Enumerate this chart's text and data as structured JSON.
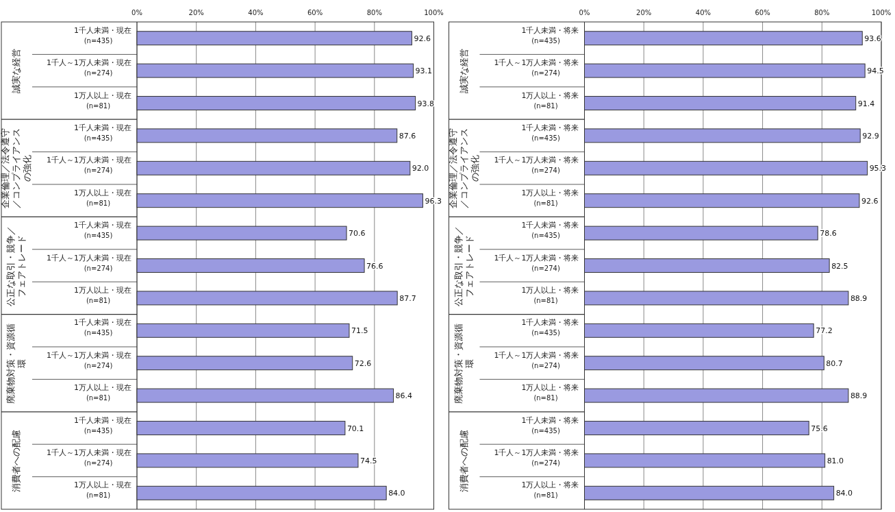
{
  "chart_data": [
    {
      "type": "bar",
      "orientation": "horizontal",
      "color": "#9a9ae0",
      "xlim": [
        0,
        100
      ],
      "grid": "x",
      "xticks": [
        {
          "value": 0,
          "label": "0%"
        },
        {
          "value": 20,
          "label": "20%"
        },
        {
          "value": 40,
          "label": "40%"
        },
        {
          "value": 60,
          "label": "60%"
        },
        {
          "value": 80,
          "label": "80%"
        },
        {
          "value": 100,
          "label": "100%"
        }
      ],
      "categories": [
        "1千人未満・現在\n(n=435)",
        "1千人～1万人未満・現在\n(n=274)",
        "1万人以上・現在\n(n=81)",
        "1千人未満・現在\n(n=435)",
        "1千人～1万人未満・現在\n(n=274)",
        "1万人以上・現在\n(n=81)",
        "1千人未満・現在\n(n=435)",
        "1千人～1万人未満・現在\n(n=274)",
        "1万人以上・現在\n(n=81)",
        "1千人未満・現在\n(n=435)",
        "1千人～1万人未満・現在\n(n=274)",
        "1万人以上・現在\n(n=81)",
        "1千人未満・現在\n(n=435)",
        "1千人～1万人未満・現在\n(n=274)",
        "1万人以上・現在\n(n=81)"
      ],
      "values": [
        92.6,
        93.1,
        93.8,
        87.6,
        92.0,
        96.3,
        70.6,
        76.6,
        87.7,
        71.5,
        72.6,
        86.4,
        70.1,
        74.5,
        84.0
      ],
      "value_labels": [
        "92.6",
        "93.1",
        "93.8",
        "87.6",
        "92.0",
        "96.3",
        "70.6",
        "76.6",
        "87.7",
        "71.5",
        "72.6",
        "86.4",
        "70.1",
        "74.5",
        "84.0"
      ],
      "annotations": [
        "誠実な経営",
        "企業倫理／法令遵守／コンプライアンスの強化",
        "公正な取引・競争／フェアトレード",
        "廃棄物対策・資源循環",
        "消費者への配慮"
      ]
    },
    {
      "type": "bar",
      "orientation": "horizontal",
      "color": "#9a9ae0",
      "xlim": [
        0,
        100
      ],
      "grid": "x",
      "xticks": [
        {
          "value": 0,
          "label": "0%"
        },
        {
          "value": 20,
          "label": "20%"
        },
        {
          "value": 40,
          "label": "40%"
        },
        {
          "value": 60,
          "label": "60%"
        },
        {
          "value": 80,
          "label": "80%"
        },
        {
          "value": 100,
          "label": "100%"
        }
      ],
      "categories": [
        "1千人未満・将来\n(n=435)",
        "1千人～1万人未満・将来\n(n=274)",
        "1万人以上・将来\n(n=81)",
        "1千人未満・将来\n(n=435)",
        "1千人～1万人未満・将来\n(n=274)",
        "1万人以上・将来\n(n=81)",
        "1千人未満・将来\n(n=435)",
        "1千人～1万人未満・将来\n(n=274)",
        "1万人以上・将来\n(n=81)",
        "1千人未満・将来\n(n=435)",
        "1千人～1万人未満・将来\n(n=274)",
        "1万人以上・将来\n(n=81)",
        "1千人未満・将来\n(n=435)",
        "1千人～1万人未満・将来\n(n=274)",
        "1万人以上・将来\n(n=81)"
      ],
      "values": [
        93.6,
        94.5,
        91.4,
        92.9,
        95.3,
        92.6,
        78.6,
        82.5,
        88.9,
        77.2,
        80.7,
        88.9,
        75.6,
        81.0,
        84.0
      ],
      "value_labels": [
        "93.6",
        "94.5",
        "91.4",
        "92.9",
        "95.3",
        "92.6",
        "78.6",
        "82.5",
        "88.9",
        "77.2",
        "80.7",
        "88.9",
        "75.6",
        "81.0",
        "84.0"
      ],
      "annotations": [
        "誠実な経営",
        "企業倫理／法令遵守／コンプライアンスの強化",
        "公正な取引・競争／フェアトレード",
        "廃棄物対策・資源循環",
        "消費者への配慮"
      ]
    }
  ]
}
